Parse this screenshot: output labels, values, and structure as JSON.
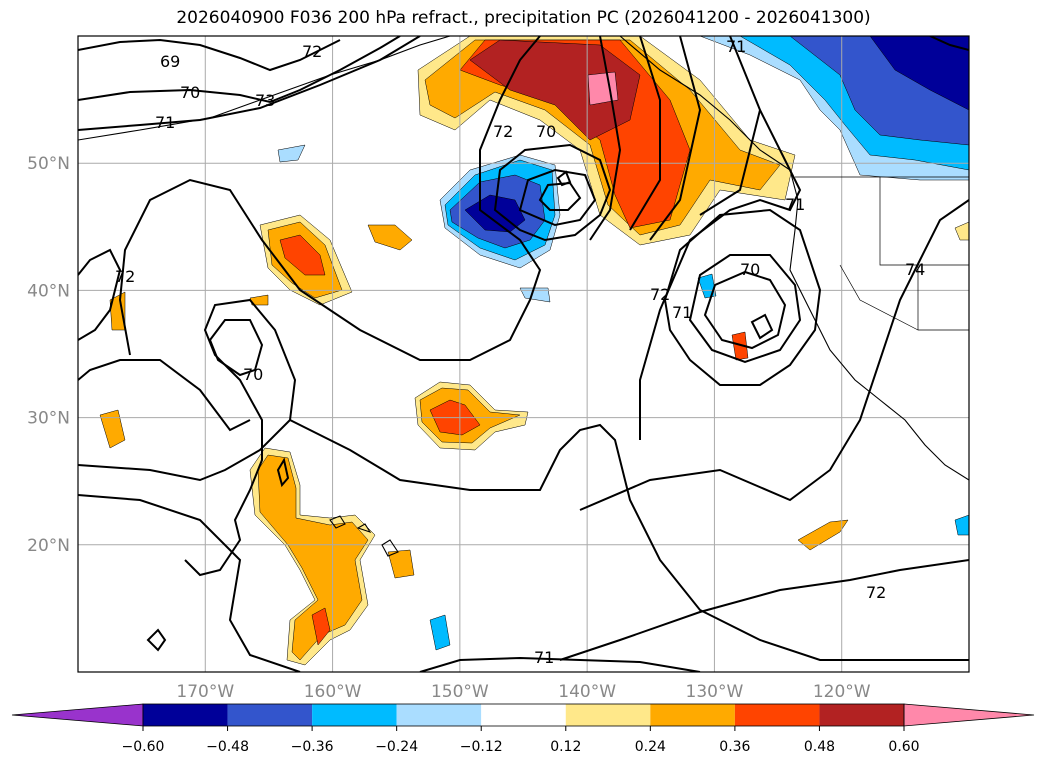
{
  "chart_data": {
    "type": "heatmap",
    "title": "2026040900 F036 200 hPa refract., precipitation PC (2026041200 - 2026041300)",
    "map_region": "North Pacific, Hawaii, Alaska Gulf, US West Coast",
    "x_axis": {
      "ticks": [
        "170°W",
        "160°W",
        "150°W",
        "140°W",
        "130°W",
        "120°W"
      ],
      "lon_values": [
        -170,
        -160,
        -150,
        -140,
        -130,
        -120
      ],
      "range": [
        -180,
        -110
      ]
    },
    "y_axis": {
      "ticks": [
        "50°N",
        "40°N",
        "30°N",
        "20°N"
      ],
      "lat_values": [
        50,
        40,
        30,
        20
      ],
      "range": [
        10,
        60
      ]
    },
    "grid": true,
    "colorbar": {
      "orientation": "horizontal",
      "extend": "both",
      "levels": [
        -0.72,
        -0.6,
        -0.48,
        -0.36,
        -0.24,
        -0.12,
        0.12,
        0.24,
        0.36,
        0.48,
        0.6,
        0.72
      ],
      "tick_labels": [
        "−0.60",
        "−0.48",
        "−0.36",
        "−0.24",
        "−0.12",
        "0.12",
        "0.24",
        "0.36",
        "0.48",
        "0.60"
      ],
      "colors": [
        "#9933cc",
        "#000099",
        "#3355cc",
        "#00bbff",
        "#aaddff",
        "#ffffff",
        "#ffe88a",
        "#ffaa00",
        "#ff4400",
        "#b22222",
        "#ff88aa"
      ]
    },
    "contours": {
      "variable": "200 hPa refractivity",
      "labels": [
        "69",
        "70",
        "71",
        "72",
        "73",
        "74",
        "70",
        "71",
        "72",
        "70",
        "70",
        "71",
        "72",
        "71",
        "72",
        "71"
      ]
    },
    "features": [
      {
        "name": "positive precipitation PC anomaly, Gulf of Alaska",
        "lon": -141,
        "lat": 54,
        "value": 0.6
      },
      {
        "name": "negative anomaly NE Pacific",
        "lon": -146,
        "lat": 46,
        "value": -0.48
      },
      {
        "name": "negative anomaly western Canada",
        "lon": -117,
        "lat": 55,
        "value": -0.6
      },
      {
        "name": "positive anomaly near Hawaii",
        "lon": -159,
        "lat": 20,
        "value": 0.36
      },
      {
        "name": "positive anomaly central Pacific",
        "lon": -148,
        "lat": 30,
        "value": 0.36
      },
      {
        "name": "positive anomaly west Pacific",
        "lon": -163,
        "lat": 43,
        "value": 0.36
      }
    ]
  }
}
